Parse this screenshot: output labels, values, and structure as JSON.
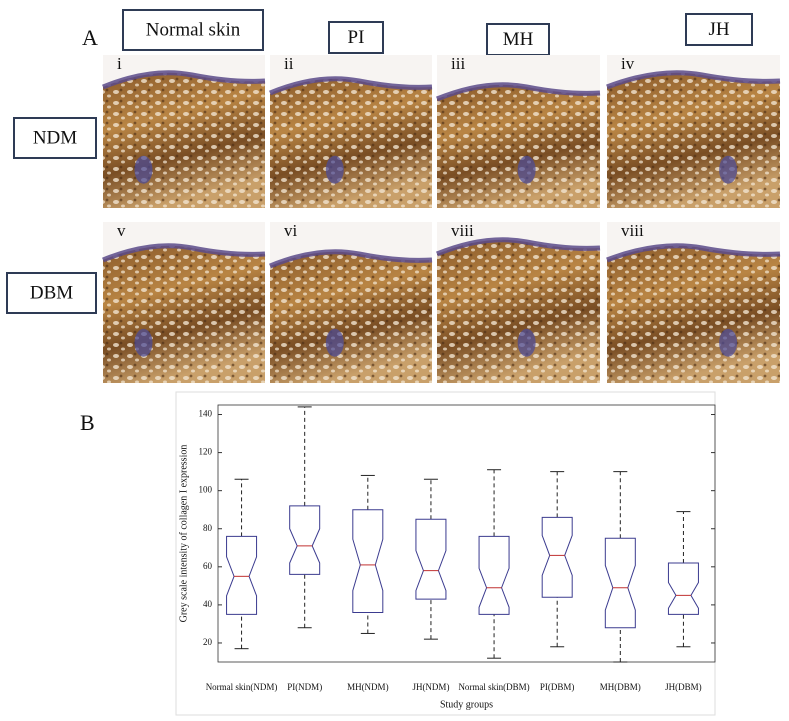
{
  "figure": {
    "panel_a": {
      "label": "A",
      "columns": [
        "Normal skin",
        "PI",
        "MH",
        "JH"
      ],
      "rows": [
        "NDM",
        "DBM"
      ],
      "images": [
        "i",
        "ii",
        "iii",
        "iv",
        "v",
        "vi",
        "viii",
        "viii"
      ]
    },
    "panel_b": {
      "label": "B"
    }
  },
  "chart_data": {
    "type": "box",
    "y_label": "Grey scale intensity of collagen I expression",
    "x_label": "Study groups",
    "categories": [
      "Normal skin(NDM)",
      "PI(NDM)",
      "MH(NDM)",
      "JH(NDM)",
      "Normal skin(DBM)",
      "PI(DBM)",
      "MH(DBM)",
      "JH(DBM)"
    ],
    "min": [
      17,
      28,
      25,
      22,
      12,
      18,
      10,
      18
    ],
    "q1": [
      35,
      56,
      36,
      43,
      35,
      44,
      28,
      35
    ],
    "median": [
      55,
      71,
      61,
      58,
      49,
      66,
      49,
      45
    ],
    "q3": [
      76,
      92,
      90,
      85,
      76,
      86,
      75,
      62
    ],
    "max": [
      106,
      144,
      108,
      106,
      111,
      110,
      110,
      89
    ],
    "color": "#3b3b8f",
    "median_color": "#c03030",
    "ylim": [
      10,
      145
    ],
    "yticks": [
      20,
      40,
      60,
      80,
      100,
      120,
      140
    ]
  }
}
